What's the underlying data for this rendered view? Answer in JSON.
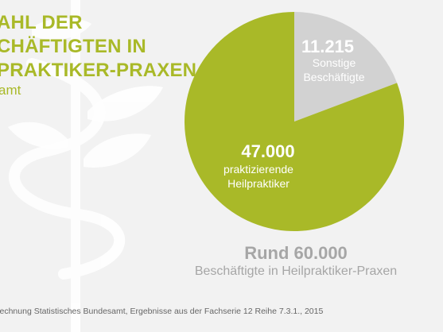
{
  "title_lines": [
    "AHL DER",
    "CHÄFTIGTEN IN",
    "PRAKTIKER-PRAXEN"
  ],
  "subtitle": "amt",
  "summary": {
    "value": "Rund 60.000",
    "label": "Beschäftigte in Heilpraktiker-Praxen"
  },
  "footer": "rechnung Statistisches Bundesamt, Ergebnisse aus der Fachserie 12 Reihe 7.3.1., 2015",
  "colors": {
    "green": "#a9b928",
    "gray": "#d2d2d2",
    "background": "#f2f2f2",
    "watermark": "#ffffff"
  },
  "chart_data": {
    "type": "pie",
    "slices": [
      {
        "value": 11215,
        "value_label": "11.215",
        "label_lines": [
          "Sonstige",
          "Beschäftigte"
        ],
        "color": "#d2d2d2"
      },
      {
        "value": 47000,
        "value_label": "47.000",
        "label_lines": [
          "praktizierende",
          "Heilpraktiker"
        ],
        "color": "#a9b928"
      }
    ]
  }
}
